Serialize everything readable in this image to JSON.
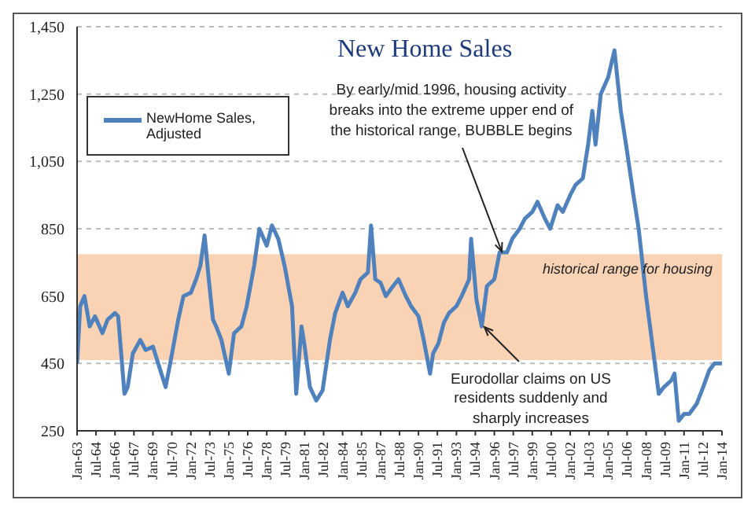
{
  "chart_data": {
    "type": "line",
    "title": "New Home Sales",
    "x": [
      "1963-01",
      "1963-04",
      "1963-08",
      "1964-01",
      "1964-06",
      "1965-01",
      "1965-06",
      "1966-01",
      "1966-04",
      "1966-10",
      "1967-01",
      "1967-06",
      "1968-01",
      "1968-06",
      "1969-01",
      "1969-06",
      "1970-01",
      "1970-06",
      "1971-01",
      "1971-06",
      "1972-01",
      "1972-06",
      "1972-10",
      "1973-02",
      "1973-06",
      "1973-10",
      "1974-01",
      "1974-06",
      "1975-01",
      "1975-06",
      "1976-01",
      "1976-06",
      "1977-01",
      "1977-06",
      "1978-01",
      "1978-06",
      "1978-12",
      "1979-06",
      "1980-01",
      "1980-05",
      "1980-10",
      "1981-01",
      "1981-06",
      "1981-12",
      "1982-06",
      "1983-01",
      "1983-06",
      "1984-01",
      "1984-06",
      "1985-01",
      "1985-06",
      "1986-01",
      "1986-04",
      "1986-08",
      "1987-01",
      "1987-06",
      "1988-01",
      "1988-06",
      "1989-01",
      "1989-06",
      "1990-01",
      "1990-06",
      "1990-12",
      "1991-03",
      "1991-08",
      "1992-01",
      "1992-06",
      "1993-01",
      "1993-06",
      "1994-01",
      "1994-03",
      "1994-08",
      "1995-01",
      "1995-06",
      "1996-01",
      "1996-06",
      "1997-01",
      "1997-06",
      "1998-01",
      "1998-06",
      "1999-01",
      "1999-06",
      "2000-01",
      "2000-06",
      "2001-01",
      "2001-06",
      "2002-01",
      "2002-06",
      "2003-01",
      "2003-06",
      "2003-10",
      "2004-01",
      "2004-06",
      "2005-01",
      "2005-07",
      "2006-01",
      "2006-06",
      "2007-01",
      "2007-06",
      "2008-01",
      "2008-06",
      "2009-01",
      "2009-06",
      "2010-01",
      "2010-04",
      "2010-08",
      "2011-01",
      "2011-06",
      "2012-01",
      "2012-06",
      "2013-01",
      "2013-06",
      "2014-01"
    ],
    "series": [
      {
        "name": "NewHome Sales, Adjusted",
        "color": "#4f81bd",
        "values": [
          450,
          620,
          650,
          560,
          590,
          540,
          580,
          600,
          590,
          360,
          380,
          480,
          520,
          490,
          500,
          450,
          380,
          460,
          580,
          650,
          660,
          700,
          740,
          830,
          700,
          580,
          560,
          520,
          420,
          540,
          560,
          620,
          740,
          850,
          800,
          860,
          820,
          740,
          620,
          360,
          560,
          500,
          380,
          340,
          370,
          520,
          600,
          660,
          620,
          660,
          700,
          720,
          860,
          700,
          690,
          650,
          680,
          700,
          650,
          620,
          590,
          520,
          420,
          480,
          510,
          570,
          600,
          620,
          650,
          700,
          820,
          640,
          560,
          680,
          700,
          780,
          780,
          820,
          850,
          880,
          900,
          930,
          880,
          850,
          920,
          900,
          950,
          980,
          1000,
          1100,
          1200,
          1100,
          1250,
          1300,
          1380,
          1200,
          1100,
          950,
          850,
          650,
          530,
          360,
          380,
          400,
          420,
          280,
          300,
          300,
          330,
          370,
          430,
          450,
          450
        ]
      }
    ],
    "xlim": [
      "1963-01",
      "2014-01"
    ],
    "xticks": [
      {
        "value": "1963-01",
        "label": "Jan-63"
      },
      {
        "value": "1964-07",
        "label": "Jul-64"
      },
      {
        "value": "1966-01",
        "label": "Jan-66"
      },
      {
        "value": "1967-07",
        "label": "Jul-67"
      },
      {
        "value": "1969-01",
        "label": "Jan-69"
      },
      {
        "value": "1970-07",
        "label": "Jul-70"
      },
      {
        "value": "1972-01",
        "label": "Jan-72"
      },
      {
        "value": "1973-07",
        "label": "Jul-73"
      },
      {
        "value": "1975-01",
        "label": "Jan-75"
      },
      {
        "value": "1976-07",
        "label": "Jul-76"
      },
      {
        "value": "1978-01",
        "label": "Jan-78"
      },
      {
        "value": "1979-07",
        "label": "Jul-79"
      },
      {
        "value": "1981-01",
        "label": "Jan-81"
      },
      {
        "value": "1982-07",
        "label": "Jul-82"
      },
      {
        "value": "1984-01",
        "label": "Jan-84"
      },
      {
        "value": "1985-07",
        "label": "Jul-85"
      },
      {
        "value": "1987-01",
        "label": "Jan-87"
      },
      {
        "value": "1988-07",
        "label": "Jul-88"
      },
      {
        "value": "1990-01",
        "label": "Jan-90"
      },
      {
        "value": "1991-07",
        "label": "Jul-91"
      },
      {
        "value": "1993-01",
        "label": "Jan-93"
      },
      {
        "value": "1994-07",
        "label": "Jul-94"
      },
      {
        "value": "1996-01",
        "label": "Jan-96"
      },
      {
        "value": "1997-07",
        "label": "Jul-97"
      },
      {
        "value": "1999-01",
        "label": "Jan-99"
      },
      {
        "value": "2000-07",
        "label": "Jul-00"
      },
      {
        "value": "2002-01",
        "label": "Jan-02"
      },
      {
        "value": "2003-07",
        "label": "Jul-03"
      },
      {
        "value": "2005-01",
        "label": "Jan-05"
      },
      {
        "value": "2006-07",
        "label": "Jul-06"
      },
      {
        "value": "2008-01",
        "label": "Jan-08"
      },
      {
        "value": "2009-07",
        "label": "Jul-09"
      },
      {
        "value": "2011-01",
        "label": "Jan-11"
      },
      {
        "value": "2012-07",
        "label": "Jul-12"
      },
      {
        "value": "2014-01",
        "label": "Jan-14"
      }
    ],
    "ylim": [
      250,
      1450
    ],
    "yticks": [
      {
        "value": 250,
        "label": "250"
      },
      {
        "value": 450,
        "label": "450"
      },
      {
        "value": 650,
        "label": "650"
      },
      {
        "value": 850,
        "label": "850"
      },
      {
        "value": 1050,
        "label": "1,050"
      },
      {
        "value": 1250,
        "label": "1,250"
      },
      {
        "value": 1450,
        "label": "1,450"
      }
    ],
    "grid": "y",
    "legend": "top left",
    "marker": "none",
    "line_style": "solid",
    "bands": [
      {
        "axis": "y",
        "from": 460,
        "to": 775,
        "label": "historical range for housing",
        "color": "#fad3b5"
      }
    ],
    "annotations": [
      {
        "text": "By early/mid 1996, housing activity breaks into the extreme upper end of the historical range, BUBBLE  begins",
        "x": "1996-06",
        "y": 780
      },
      {
        "text": "Eurodollar claims on US residents suddenly and sharply increases",
        "x": "1995-01",
        "y": 560
      }
    ]
  }
}
